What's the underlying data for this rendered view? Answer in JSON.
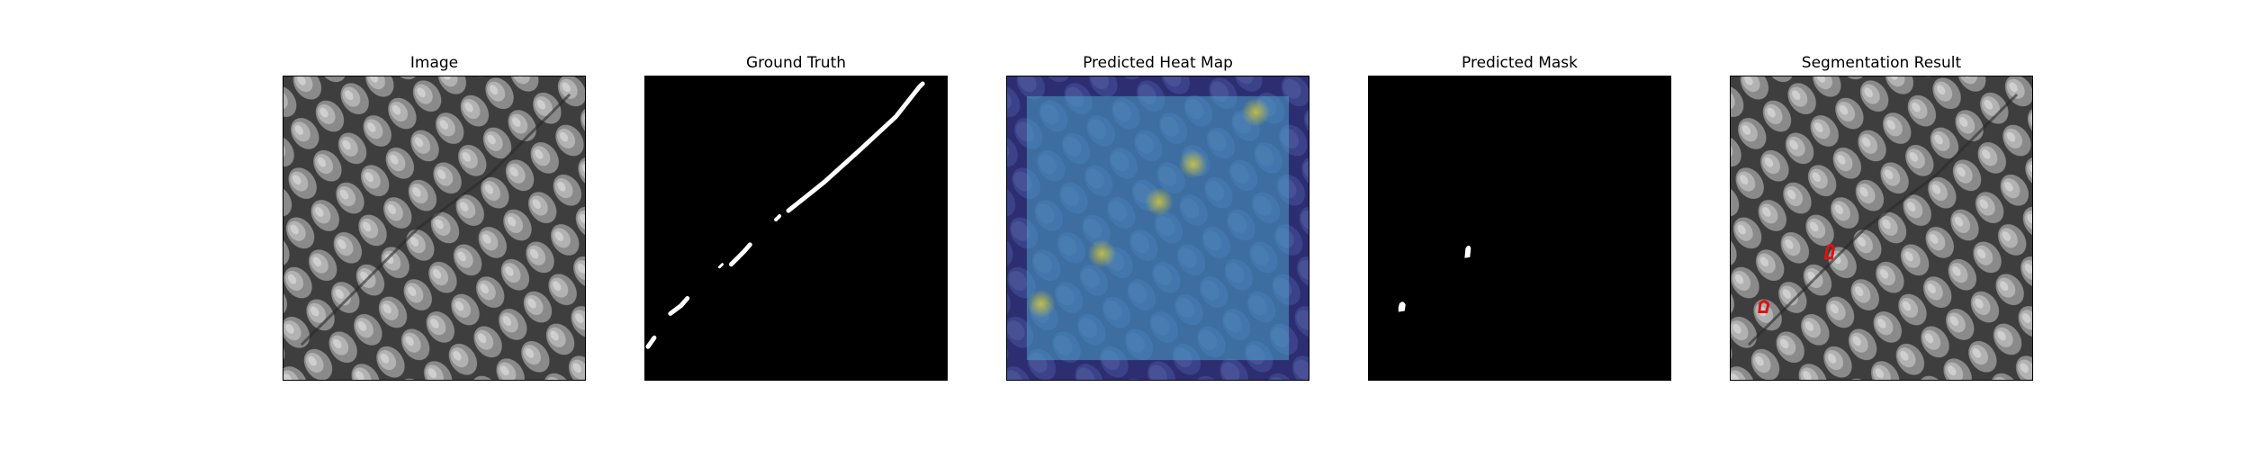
{
  "panels": [
    {
      "title": "Image"
    },
    {
      "title": "Ground Truth"
    },
    {
      "title": "Predicted Heat Map"
    },
    {
      "title": "Predicted Mask"
    },
    {
      "title": "Segmentation Result"
    }
  ],
  "colors": {
    "texture_base": "#6a6a6a",
    "mask_background": "#000000",
    "mask_foreground": "#ffffff",
    "heat_low": "#3b2f87",
    "heat_mid": "#4aa3c8",
    "heat_high": "#b8c83a",
    "contour": "#e01010"
  }
}
